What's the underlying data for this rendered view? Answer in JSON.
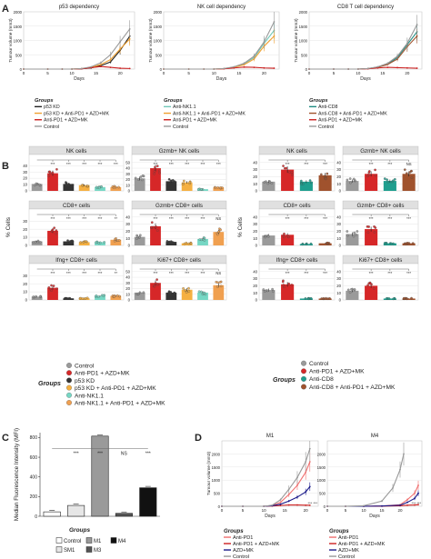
{
  "letters": {
    "A": "A",
    "B": "B",
    "C": "C",
    "D": "D"
  },
  "panelA": {
    "ylabel": "Tumour volume (mm3)",
    "xlabel": "Days",
    "legend_title": "Groups",
    "charts": [
      {
        "title": "p53 dependency",
        "yticks": [
          "0",
          "500",
          "1000",
          "1500",
          "2000"
        ],
        "ylim": [
          0,
          2000
        ],
        "xticks": [
          "0",
          "5",
          "10",
          "15",
          "20"
        ],
        "xlim": [
          0,
          23
        ],
        "series": [
          {
            "name": "p53 KD",
            "color": "#222222",
            "x": [
              0,
              5,
              8,
              10,
              12,
              14,
              16,
              18,
              20,
              22
            ],
            "y": [
              0,
              0,
              0,
              0,
              10,
              40,
              120,
              250,
              650,
              1150
            ]
          },
          {
            "name": "p53 KD + Anti-PD1 + AZD+MK",
            "color": "#f0a030",
            "x": [
              0,
              5,
              8,
              10,
              12,
              14,
              16,
              18,
              20,
              22
            ],
            "y": [
              0,
              0,
              0,
              0,
              20,
              60,
              160,
              330,
              700,
              1050
            ]
          },
          {
            "name": "Anti-PD1 + AZD+MK",
            "color": "#cc2020",
            "x": [
              0,
              5,
              8,
              10,
              12,
              14,
              16,
              18,
              20,
              22
            ],
            "y": [
              0,
              0,
              0,
              0,
              10,
              50,
              90,
              60,
              30,
              20
            ]
          },
          {
            "name": "Control",
            "color": "#999999",
            "x": [
              0,
              5,
              8,
              10,
              12,
              14,
              16,
              18,
              20,
              22
            ],
            "y": [
              0,
              0,
              0,
              0,
              20,
              80,
              220,
              500,
              950,
              1400
            ]
          }
        ]
      },
      {
        "title": "NK cell dependency",
        "yticks": [
          "0",
          "500",
          "1000",
          "1500",
          "2000"
        ],
        "ylim": [
          0,
          2000
        ],
        "xticks": [
          "0",
          "5",
          "10",
          "15",
          "20"
        ],
        "xlim": [
          0,
          23
        ],
        "series": [
          {
            "name": "Anti-NK1.1",
            "color": "#70c8b8",
            "x": [
              0,
              5,
              8,
              10,
              12,
              14,
              16,
              18,
              20,
              22
            ],
            "y": [
              0,
              0,
              0,
              0,
              20,
              70,
              180,
              400,
              900,
              1350
            ]
          },
          {
            "name": "Anti-NK1.1 + Anti-PD1 + AZD+MK",
            "color": "#f0a030",
            "x": [
              0,
              5,
              8,
              10,
              12,
              14,
              16,
              18,
              20,
              22
            ],
            "y": [
              0,
              0,
              0,
              0,
              15,
              60,
              150,
              350,
              800,
              1150
            ]
          },
          {
            "name": "Anti-PD1 + AZD+MK",
            "color": "#cc2020",
            "x": [
              0,
              5,
              8,
              10,
              12,
              14,
              16,
              18,
              20,
              22
            ],
            "y": [
              0,
              0,
              0,
              0,
              10,
              40,
              70,
              60,
              40,
              30
            ]
          },
          {
            "name": "Control",
            "color": "#999999",
            "x": [
              0,
              5,
              8,
              10,
              12,
              14,
              16,
              18,
              20,
              22
            ],
            "y": [
              0,
              0,
              0,
              0,
              20,
              80,
              200,
              450,
              950,
              1650
            ]
          }
        ]
      },
      {
        "title": "CD8 T cell dependency",
        "yticks": [
          "0",
          "500",
          "1000",
          "1500",
          "2000"
        ],
        "ylim": [
          0,
          2000
        ],
        "xticks": [
          "0",
          "5",
          "10",
          "15",
          "20"
        ],
        "xlim": [
          0,
          23
        ],
        "series": [
          {
            "name": "Anti-CD8",
            "color": "#1f8a80",
            "x": [
              0,
              5,
              8,
              10,
              12,
              14,
              16,
              18,
              20,
              22
            ],
            "y": [
              0,
              0,
              0,
              0,
              20,
              70,
              180,
              400,
              850,
              1300
            ]
          },
          {
            "name": "Anti-CD8 + Anti-PD1 + AZD+MK",
            "color": "#a0522d",
            "x": [
              0,
              5,
              8,
              10,
              12,
              14,
              16,
              18,
              20,
              22
            ],
            "y": [
              0,
              0,
              0,
              0,
              20,
              60,
              160,
              350,
              780,
              1150
            ]
          },
          {
            "name": "Anti-PD1 + AZD+MK",
            "color": "#cc2020",
            "x": [
              0,
              5,
              8,
              10,
              12,
              14,
              16,
              18,
              20,
              22
            ],
            "y": [
              0,
              0,
              0,
              0,
              10,
              40,
              60,
              50,
              40,
              30
            ]
          },
          {
            "name": "Control",
            "color": "#999999",
            "x": [
              0,
              5,
              8,
              10,
              12,
              14,
              16,
              18,
              20,
              22
            ],
            "y": [
              0,
              0,
              0,
              0,
              20,
              80,
              200,
              450,
              900,
              1550
            ]
          }
        ]
      }
    ]
  },
  "panelB": {
    "ylabel": "% Cells",
    "legend_title": "Groups",
    "left_groups": [
      {
        "name": "Control",
        "color": "#9a9a9a"
      },
      {
        "name": "Anti-PD1 + AZD+MK",
        "color": "#d62728"
      },
      {
        "name": "p53 KD",
        "color": "#333333"
      },
      {
        "name": "p53 KD + Anti-PD1 + AZD+MK",
        "color": "#f5b041"
      },
      {
        "name": "Anti-NK1.1",
        "color": "#76d7c4"
      },
      {
        "name": "Anti-NK1.1 + Anti-PD1 + AZD+MK",
        "color": "#f0a050"
      }
    ],
    "right_groups": [
      {
        "name": "Control",
        "color": "#9a9a9a"
      },
      {
        "name": "Anti-PD1 + AZD+MK",
        "color": "#d62728"
      },
      {
        "name": "Anti-CD8",
        "color": "#1f9e8e"
      },
      {
        "name": "Anti-CD8 + Anti-PD1 + AZD+MK",
        "color": "#a0522d"
      }
    ],
    "left_facets": [
      {
        "title": "NK cells",
        "yticks": [
          "0",
          "10",
          "20",
          "30",
          "40"
        ],
        "ymax": 45,
        "values": [
          11,
          28,
          11,
          9,
          6,
          6
        ],
        "sig": [
          "***",
          "***",
          "***",
          "***",
          "***"
        ]
      },
      {
        "title": "Gzmb+ NK cells",
        "yticks": [
          "0",
          "10",
          "20",
          "30",
          "40",
          "50"
        ],
        "ymax": 50,
        "values": [
          22,
          40,
          17,
          15,
          3,
          6
        ],
        "sig": [
          "***",
          "***",
          "***",
          "***",
          "***"
        ]
      },
      {
        "title": "CD8+ cells",
        "yticks": [
          "0",
          "10",
          "20",
          "30"
        ],
        "ymax": 35,
        "values": [
          5,
          18,
          5,
          4,
          4,
          7
        ],
        "sig": [
          "***",
          "***",
          "***",
          "***",
          "**"
        ]
      },
      {
        "title": "Gzmb+ CD8+ cells",
        "yticks": [
          "0",
          "10",
          "20",
          "30",
          "40"
        ],
        "ymax": 40,
        "values": [
          12,
          27,
          5,
          3,
          9,
          19
        ],
        "sig": [
          "***",
          "***",
          "***",
          "***",
          "NS"
        ]
      },
      {
        "title": "Ifng+ CD8+ cells",
        "yticks": [
          "0",
          "10",
          "20",
          "30"
        ],
        "ymax": 35,
        "values": [
          4,
          15,
          2,
          2,
          5,
          5
        ],
        "sig": [
          "***",
          "***",
          "***",
          "***",
          "**"
        ]
      },
      {
        "title": "Ki67+ CD8+ cells",
        "yticks": [
          "0",
          "10",
          "20",
          "30",
          "40",
          "50"
        ],
        "ymax": 50,
        "values": [
          13,
          30,
          13,
          18,
          13,
          26
        ],
        "sig": [
          "***",
          "***",
          "***",
          "***",
          "NS"
        ]
      }
    ],
    "right_facets": [
      {
        "title": "NK cells",
        "yticks": [
          "0",
          "10",
          "20",
          "30",
          "40"
        ],
        "ymax": 40,
        "values": [
          13,
          30,
          13,
          22
        ],
        "sig": [
          "***",
          "***",
          "***"
        ]
      },
      {
        "title": "Gzmb+ NK cells",
        "yticks": [
          "0",
          "10",
          "20",
          "30",
          "40"
        ],
        "ymax": 40,
        "values": [
          14,
          24,
          14,
          24
        ],
        "sig": [
          "***",
          "***",
          "NS"
        ]
      },
      {
        "title": "CD8+ cells",
        "yticks": [
          "0",
          "10",
          "20",
          "30",
          "40"
        ],
        "ymax": 40,
        "values": [
          14,
          15,
          2,
          3
        ],
        "sig": [
          "***",
          "***",
          "***"
        ]
      },
      {
        "title": "Gzmb+ CD8+ cells",
        "yticks": [
          "0",
          "10",
          "20",
          "30",
          "40"
        ],
        "ymax": 40,
        "values": [
          16,
          23,
          3,
          3
        ],
        "sig": [
          "***",
          "***",
          "***"
        ]
      },
      {
        "title": "Ifng+ CD8+ cells",
        "yticks": [
          "0",
          "10",
          "20",
          "30",
          "40"
        ],
        "ymax": 40,
        "values": [
          14,
          22,
          2,
          2
        ],
        "sig": [
          "***",
          "***",
          "***"
        ]
      },
      {
        "title": "Ki67+ CD8+ cells",
        "yticks": [
          "0",
          "10",
          "20",
          "30",
          "40"
        ],
        "ymax": 40,
        "values": [
          13,
          20,
          2,
          2
        ],
        "sig": [
          "***",
          "***",
          "***"
        ]
      }
    ]
  },
  "panelC": {
    "ylabel": "Median Fluorescence Intensity (MFI)",
    "yticks": [
      "0",
      "200",
      "400",
      "600",
      "800"
    ],
    "ymax": 850,
    "legend_title": "Groups",
    "bars": [
      {
        "name": "Control",
        "value": 45,
        "color": "#ffffff"
      },
      {
        "name": "SM1",
        "value": 110,
        "color": "#e6e6e6"
      },
      {
        "name": "M1",
        "value": 815,
        "color": "#9a9a9a"
      },
      {
        "name": "M3",
        "value": 30,
        "color": "#555555"
      },
      {
        "name": "M4",
        "value": 290,
        "color": "#111111"
      }
    ],
    "sig": [
      "***",
      "***",
      "NS",
      "***"
    ]
  },
  "panelD": {
    "ylabel": "Tumour volume (mm3)",
    "xlabel": "Days",
    "legend_title": "Groups",
    "charts": [
      {
        "title": "M1",
        "yticks": [
          "0",
          "500",
          "1000",
          "1500",
          "2000"
        ],
        "ylim": [
          0,
          2500
        ],
        "xticks": [
          "0",
          "5",
          "10",
          "15",
          "20"
        ],
        "xlim": [
          0,
          23
        ],
        "stars": "*** ***",
        "series": [
          {
            "name": "Anti-PD1",
            "color": "#f07070",
            "x": [
              0,
              5,
              10,
              12,
              14,
              16,
              18,
              20,
              21
            ],
            "y": [
              0,
              0,
              0,
              30,
              150,
              450,
              800,
              1300,
              1700
            ]
          },
          {
            "name": "Anti-PD1 + AZD+MK",
            "color": "#cc2020",
            "x": [
              0,
              5,
              10,
              12,
              14,
              16,
              18,
              20,
              21
            ],
            "y": [
              0,
              0,
              0,
              10,
              30,
              50,
              50,
              40,
              40
            ]
          },
          {
            "name": "AZD+MK",
            "color": "#1a1a8a",
            "x": [
              0,
              5,
              10,
              12,
              14,
              16,
              18,
              20,
              21
            ],
            "y": [
              0,
              0,
              0,
              20,
              80,
              200,
              350,
              550,
              750
            ]
          },
          {
            "name": "Control",
            "color": "#999999",
            "x": [
              0,
              5,
              10,
              12,
              14,
              16,
              18,
              20,
              21
            ],
            "y": [
              0,
              0,
              0,
              40,
              250,
              650,
              1100,
              1700,
              2200
            ]
          }
        ]
      },
      {
        "title": "M4",
        "yticks": [
          "0",
          "500",
          "1000",
          "1500",
          "2000"
        ],
        "ylim": [
          0,
          2500
        ],
        "xticks": [
          "0",
          "5",
          "10",
          "15",
          "20"
        ],
        "xlim": [
          0,
          26
        ],
        "stars": "*** ***",
        "series": [
          {
            "name": "Anti-PD1",
            "color": "#f07070",
            "x": [
              0,
              5,
              10,
              15,
              20,
              22,
              24,
              25
            ],
            "y": [
              0,
              0,
              0,
              10,
              60,
              250,
              500,
              800
            ]
          },
          {
            "name": "Anti-PD1 + AZD+MK",
            "color": "#cc2020",
            "x": [
              0,
              5,
              10,
              15,
              20,
              22,
              24,
              25
            ],
            "y": [
              0,
              0,
              0,
              5,
              20,
              40,
              50,
              60
            ]
          },
          {
            "name": "AZD+MK",
            "color": "#1a1a8a",
            "x": [
              0,
              5,
              10,
              15,
              20,
              22,
              24,
              25
            ],
            "y": [
              0,
              0,
              0,
              10,
              40,
              150,
              300,
              500
            ]
          },
          {
            "name": "Control",
            "color": "#999999",
            "x": [
              0,
              5,
              10,
              15,
              18,
              20,
              21
            ],
            "y": [
              0,
              0,
              20,
              200,
              700,
              1400,
              2000
            ]
          }
        ]
      }
    ]
  }
}
